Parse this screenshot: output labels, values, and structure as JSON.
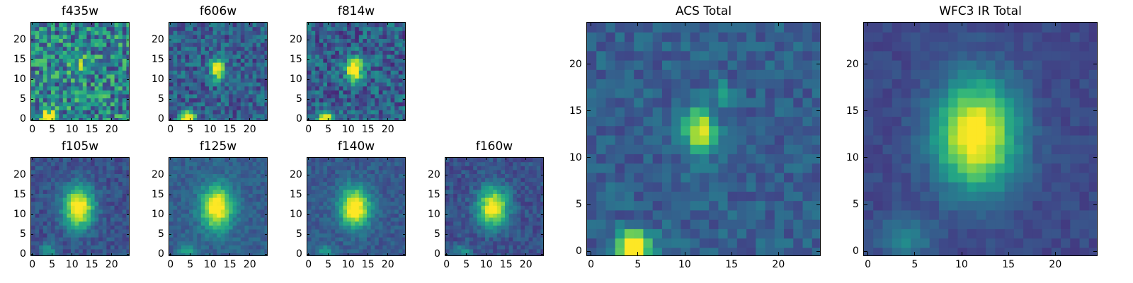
{
  "chart_data": [
    {
      "type": "heatmap",
      "title": "f435w",
      "colormap": "viridis",
      "xlim": [
        0,
        24
      ],
      "ylim": [
        0,
        24
      ],
      "x_ticks": [
        "0",
        "5",
        "10",
        "15",
        "20"
      ],
      "y_ticks": [
        "0",
        "5",
        "10",
        "15",
        "20"
      ],
      "sources": [
        {
          "x": 4,
          "y": 0.5,
          "peak": 0.85,
          "sx": 1.3,
          "sy": 1.1
        },
        {
          "x": 12,
          "y": 13,
          "peak": 0.3,
          "sx": 1.6,
          "sy": 2.0
        }
      ],
      "background": 0.45,
      "noise": 0.3
    },
    {
      "type": "heatmap",
      "title": "f606w",
      "colormap": "viridis",
      "xlim": [
        0,
        24
      ],
      "ylim": [
        0,
        24
      ],
      "x_ticks": [
        "0",
        "5",
        "10",
        "15",
        "20"
      ],
      "y_ticks": [
        "0",
        "5",
        "10",
        "15",
        "20"
      ],
      "sources": [
        {
          "x": 4,
          "y": 0.5,
          "peak": 0.95,
          "sx": 1.3,
          "sy": 1.1
        },
        {
          "x": 11.5,
          "y": 13,
          "peak": 0.8,
          "sx": 1.2,
          "sy": 1.8
        }
      ],
      "background": 0.3,
      "noise": 0.18
    },
    {
      "type": "heatmap",
      "title": "f814w",
      "colormap": "viridis",
      "xlim": [
        0,
        24
      ],
      "ylim": [
        0,
        24
      ],
      "x_ticks": [
        "0",
        "5",
        "10",
        "15",
        "20"
      ],
      "y_ticks": [
        "0",
        "5",
        "10",
        "15",
        "20"
      ],
      "sources": [
        {
          "x": 4,
          "y": 0.5,
          "peak": 0.9,
          "sx": 1.3,
          "sy": 1.1
        },
        {
          "x": 11.5,
          "y": 12.5,
          "peak": 0.85,
          "sx": 1.4,
          "sy": 2.2
        }
      ],
      "background": 0.3,
      "noise": 0.2
    },
    {
      "type": "heatmap",
      "title": "f105w",
      "colormap": "viridis",
      "xlim": [
        0,
        24
      ],
      "ylim": [
        0,
        24
      ],
      "x_ticks": [
        "0",
        "5",
        "10",
        "15",
        "20"
      ],
      "y_ticks": [
        "0",
        "5",
        "10",
        "15",
        "20"
      ],
      "sources": [
        {
          "x": 11.5,
          "y": 12,
          "peak": 0.85,
          "sx": 2.6,
          "sy": 3.6
        },
        {
          "x": 4,
          "y": 1,
          "peak": 0.3,
          "sx": 1.5,
          "sy": 1.2
        }
      ],
      "background": 0.25,
      "noise": 0.09
    },
    {
      "type": "heatmap",
      "title": "f125w",
      "colormap": "viridis",
      "xlim": [
        0,
        24
      ],
      "ylim": [
        0,
        24
      ],
      "x_ticks": [
        "0",
        "5",
        "10",
        "15",
        "20"
      ],
      "y_ticks": [
        "0",
        "5",
        "10",
        "15",
        "20"
      ],
      "sources": [
        {
          "x": 11.5,
          "y": 12,
          "peak": 0.8,
          "sx": 2.8,
          "sy": 3.8
        },
        {
          "x": 4,
          "y": 1,
          "peak": 0.3,
          "sx": 1.5,
          "sy": 1.2
        }
      ],
      "background": 0.3,
      "noise": 0.08
    },
    {
      "type": "heatmap",
      "title": "f140w",
      "colormap": "viridis",
      "xlim": [
        0,
        24
      ],
      "ylim": [
        0,
        24
      ],
      "x_ticks": [
        "0",
        "5",
        "10",
        "15",
        "20"
      ],
      "y_ticks": [
        "0",
        "5",
        "10",
        "15",
        "20"
      ],
      "sources": [
        {
          "x": 11.5,
          "y": 12,
          "peak": 0.85,
          "sx": 2.6,
          "sy": 3.4
        },
        {
          "x": 4,
          "y": 1,
          "peak": 0.25,
          "sx": 1.5,
          "sy": 1.2
        }
      ],
      "background": 0.28,
      "noise": 0.08
    },
    {
      "type": "heatmap",
      "title": "f160w",
      "colormap": "viridis",
      "xlim": [
        0,
        24
      ],
      "ylim": [
        0,
        24
      ],
      "x_ticks": [
        "0",
        "5",
        "10",
        "15",
        "20"
      ],
      "y_ticks": [
        "0",
        "5",
        "10",
        "15",
        "20"
      ],
      "sources": [
        {
          "x": 11.5,
          "y": 12,
          "peak": 0.8,
          "sx": 2.6,
          "sy": 3.4
        },
        {
          "x": 4,
          "y": 1,
          "peak": 0.25,
          "sx": 1.5,
          "sy": 1.2
        }
      ],
      "background": 0.25,
      "noise": 0.09
    },
    {
      "type": "heatmap",
      "title": "ACS Total",
      "colormap": "viridis",
      "xlim": [
        0,
        24
      ],
      "ylim": [
        0,
        24
      ],
      "x_ticks": [
        "0",
        "5",
        "10",
        "15",
        "20"
      ],
      "y_ticks": [
        "0",
        "5",
        "10",
        "15",
        "20"
      ],
      "sources": [
        {
          "x": 4.5,
          "y": 0.5,
          "peak": 0.95,
          "sx": 1.3,
          "sy": 1.2
        },
        {
          "x": 11.5,
          "y": 13,
          "peak": 0.65,
          "sx": 1.2,
          "sy": 1.8
        },
        {
          "x": 14,
          "y": 17,
          "peak": 0.25,
          "sx": 0.8,
          "sy": 0.8
        }
      ],
      "background": 0.3,
      "noise": 0.1
    },
    {
      "type": "heatmap",
      "title": "WFC3 IR Total",
      "colormap": "viridis",
      "xlim": [
        0,
        24
      ],
      "ylim": [
        0,
        24
      ],
      "x_ticks": [
        "0",
        "5",
        "10",
        "15",
        "20"
      ],
      "y_ticks": [
        "0",
        "5",
        "10",
        "15",
        "20"
      ],
      "sources": [
        {
          "x": 11.5,
          "y": 12.5,
          "peak": 0.85,
          "sx": 3.0,
          "sy": 4.0
        },
        {
          "x": 4,
          "y": 1.5,
          "peak": 0.25,
          "sx": 1.8,
          "sy": 1.4
        }
      ],
      "background": 0.22,
      "noise": 0.05
    }
  ]
}
